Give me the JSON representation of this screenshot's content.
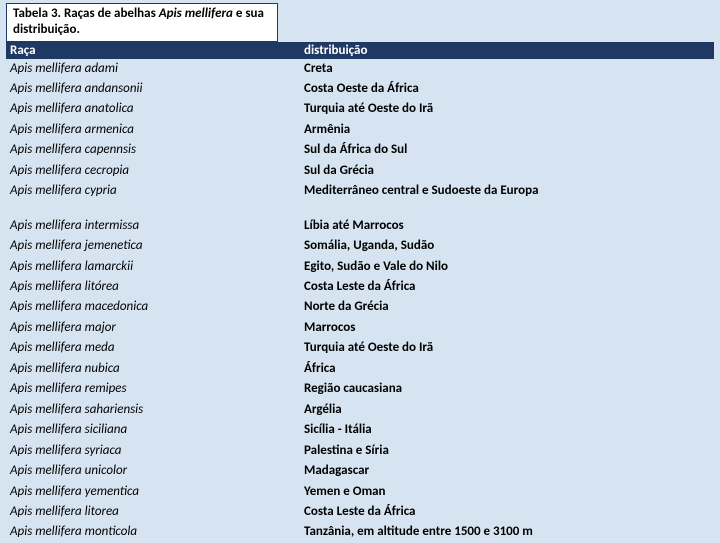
{
  "caption_prefix": "Tabela 3. Raças de abelhas ",
  "caption_italic": "Apis mellifera",
  "caption_suffix": " e sua distribuição.",
  "header": {
    "race": "Raça",
    "dist": "distribuição"
  },
  "group1": [
    {
      "race": "Apis mellifera adami",
      "dist": "Creta"
    },
    {
      "race": "Apis mellifera andansonii",
      "dist": "Costa Oeste da África"
    },
    {
      "race": "Apis mellifera anatolica",
      "dist": "Turquia até Oeste do Irã"
    },
    {
      "race": "Apis mellifera armenica",
      "dist": "Armênia"
    },
    {
      "race": "Apis mellifera capennsis",
      "dist": "Sul da África do Sul"
    },
    {
      "race": "Apis mellifera cecropia",
      "dist": "Sul da Grécia"
    },
    {
      "race": "Apis mellifera cypria",
      "dist": "Mediterrâneo central e Sudoeste da Europa"
    }
  ],
  "group2": [
    {
      "race": "Apis mellifera intermissa",
      "dist": "Líbia até Marrocos"
    },
    {
      "race": "Apis mellifera jemenetica",
      "dist": "Somália, Uganda, Sudão"
    },
    {
      "race": "Apis mellifera lamarckii",
      "dist": "Egito, Sudão e Vale do Nilo"
    },
    {
      "race": "Apis mellifera litórea",
      "dist": "Costa Leste da África"
    },
    {
      "race": "Apis mellifera macedonica",
      "dist": "Norte da Grécia"
    },
    {
      "race": "Apis mellifera major",
      "dist": "Marrocos"
    },
    {
      "race": "Apis mellifera meda",
      "dist": "Turquia até Oeste do Irã"
    },
    {
      "race": "Apis mellifera nubica",
      "dist": "África"
    },
    {
      "race": "Apis mellifera remipes",
      "dist": "Região caucasiana"
    },
    {
      "race": "Apis mellifera sahariensis",
      "dist": "Argélia"
    },
    {
      "race": "Apis mellifera siciliana",
      "dist": "Sicília - Itália"
    },
    {
      "race": "Apis mellifera syriaca",
      "dist": "Palestina e Síria"
    },
    {
      "race": "Apis mellifera unicolor",
      "dist": "Madagascar"
    },
    {
      "race": "Apis mellifera yementica",
      "dist": "Yemen e Oman"
    },
    {
      "race": "Apis mellifera litorea",
      "dist": "Costa Leste da África"
    },
    {
      "race": "Apis mellifera monticola",
      "dist": "Tanzânia, em altitude entre 1500 e 3100 m"
    }
  ]
}
